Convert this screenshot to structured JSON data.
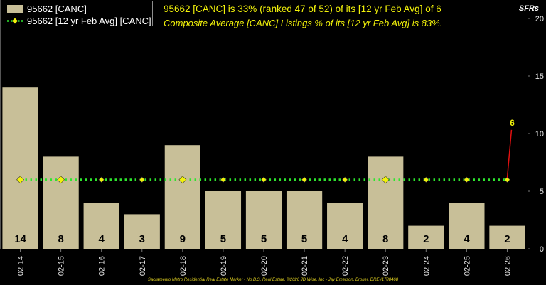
{
  "chart_data": {
    "type": "bar",
    "headline": "95662 [CANC] is 33% (ranked 47 of 52) of its [12 yr Feb Avg] of 6",
    "subline": "Composite Average [CANC] Listings % of its [12 yr Feb Avg] is 83%.",
    "unit_label": "SFRs",
    "footer": "Sacramento Metro Residential Real Estate Market - No.B.S. Real Estate, ©2026 JD Wise, Inc - Jay Emerson, Broker, DRE#1788468",
    "categories": [
      "02-14",
      "02-15",
      "02-16",
      "02-17",
      "02-18",
      "02-19",
      "02-20",
      "02-21",
      "02-22",
      "02-23",
      "02-24",
      "02-25",
      "02-26"
    ],
    "series": [
      {
        "name": "95662 [CANC]",
        "kind": "bar",
        "color": "#c8bf98",
        "values": [
          14,
          8,
          4,
          3,
          9,
          5,
          5,
          5,
          4,
          8,
          2,
          4,
          2
        ]
      },
      {
        "name": "95662 [12 yr Feb Avg] [CANC]",
        "kind": "line",
        "color": "#2ee62e",
        "marker_color": "#f2f20a",
        "values": [
          6,
          6,
          6,
          6,
          6,
          6,
          6,
          6,
          6,
          6,
          6,
          6,
          6
        ]
      }
    ],
    "callout": {
      "text": "6",
      "color": "#f2f20a",
      "line_color": "#e01010"
    },
    "ylim": [
      0,
      20
    ],
    "yticks": [
      0,
      5,
      10,
      15,
      20
    ],
    "grid": false,
    "legend": "top-left"
  }
}
